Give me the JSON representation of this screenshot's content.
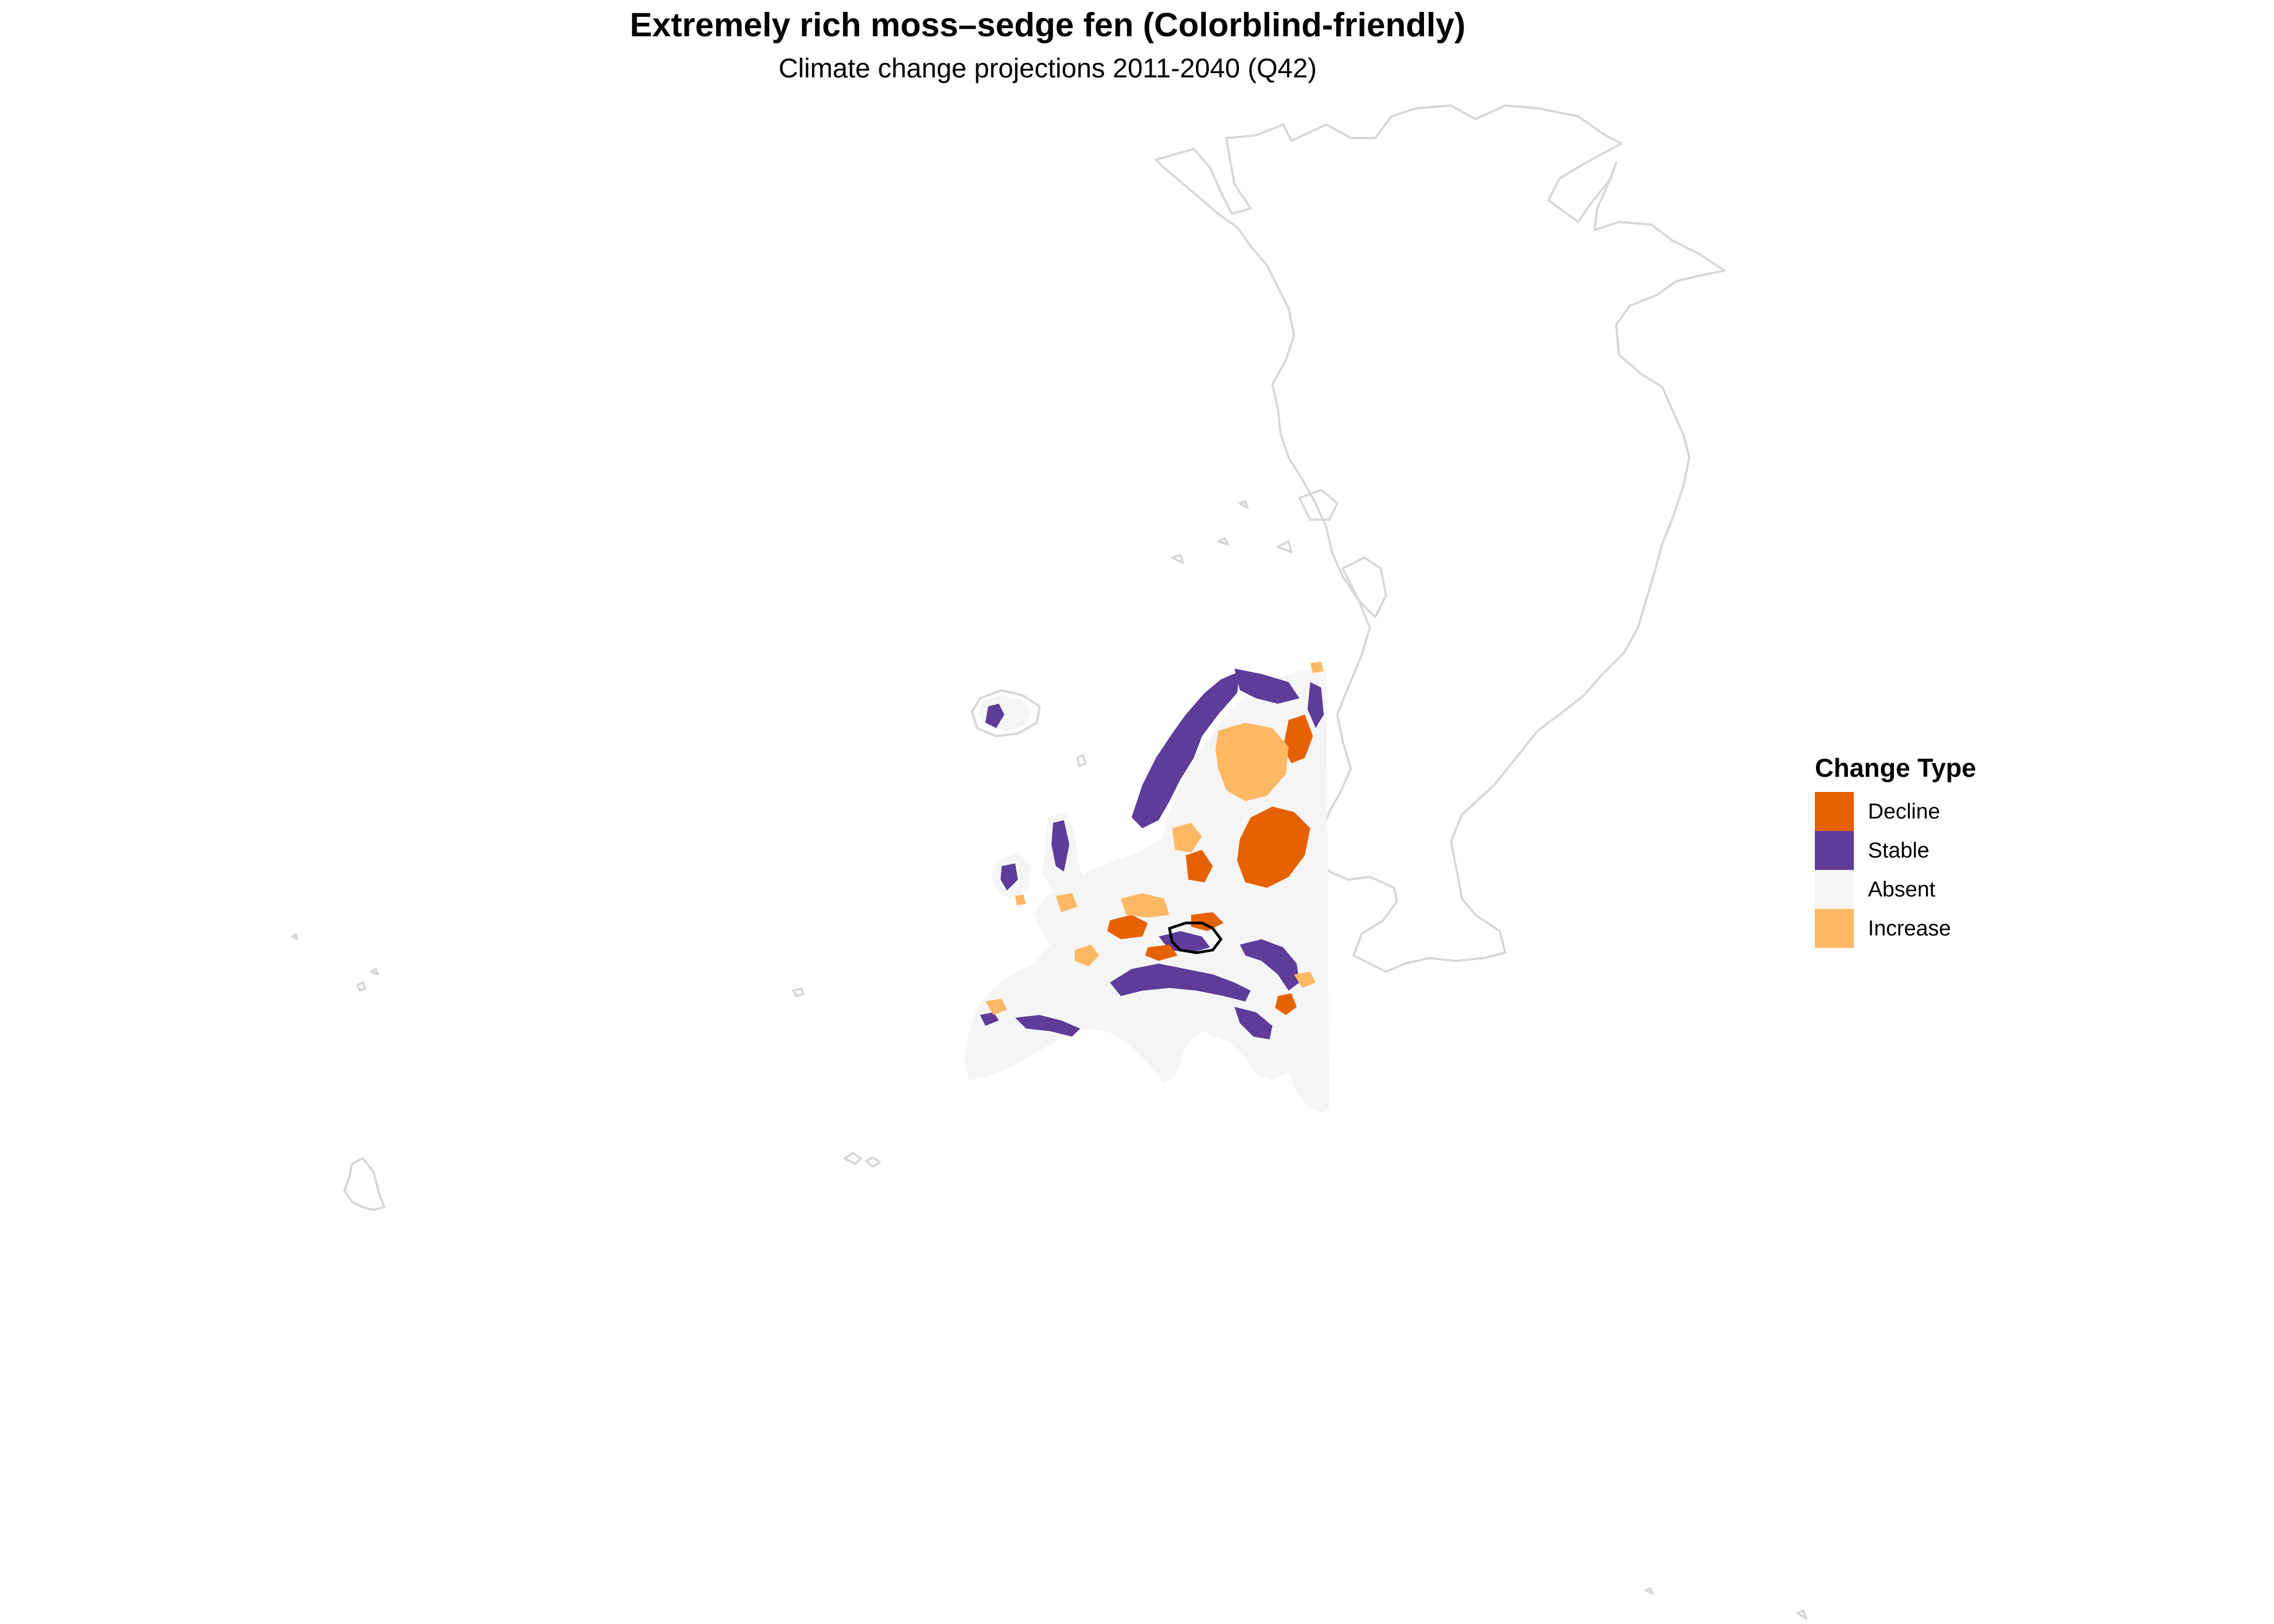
{
  "title": "Extremely rich moss–sedge fen (Colorblind-friendly)",
  "subtitle": "Climate change projections 2011-2040 (Q42)",
  "legend": {
    "title": "Change Type",
    "items": [
      {
        "label": "Decline",
        "color": "#E66101"
      },
      {
        "label": "Stable",
        "color": "#5E3C99"
      },
      {
        "label": "Absent",
        "color": "#F5F5F5"
      },
      {
        "label": "Increase",
        "color": "#FDB863"
      }
    ]
  },
  "colors": {
    "outline": "#D7D7D7",
    "highlight_region": "#000000",
    "background": "#FFFFFF"
  }
}
